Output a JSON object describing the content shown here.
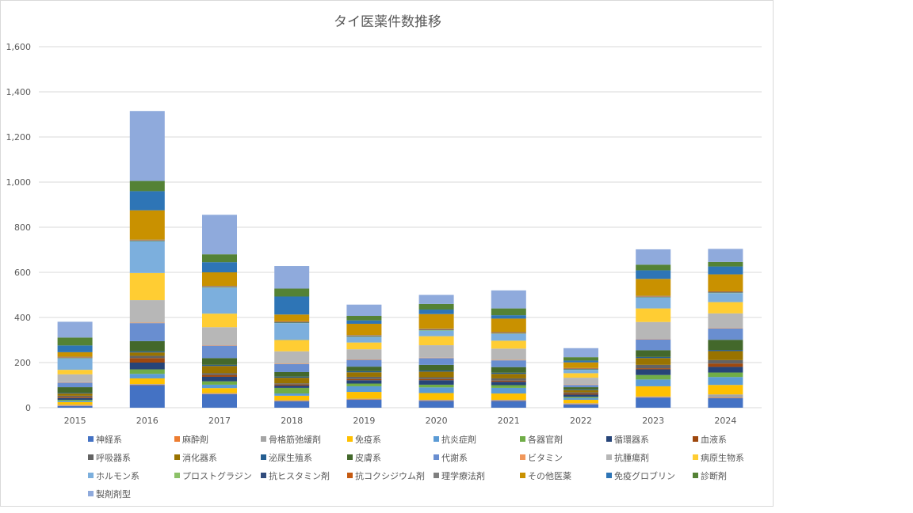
{
  "chart_data": {
    "type": "bar",
    "stacked": true,
    "title": "タイ医薬件数推移",
    "categories": [
      "2015",
      "2016",
      "2017",
      "2018",
      "2019",
      "2020",
      "2021",
      "2022",
      "2023",
      "2024"
    ],
    "ylim": [
      0,
      1600
    ],
    "yticks": [
      "0",
      "200",
      "400",
      "600",
      "800",
      "1,000",
      "1,200",
      "1,400",
      "1,600"
    ],
    "grid": true,
    "legend_position": "bottom",
    "series": [
      {
        "name": "神経系",
        "color": "#4472c4",
        "values": [
          8,
          100,
          60,
          28,
          35,
          30,
          30,
          15,
          45,
          42
        ]
      },
      {
        "name": "麻酔剤",
        "color": "#ed7d31",
        "values": [
          2,
          2,
          2,
          2,
          2,
          2,
          2,
          2,
          2,
          2
        ]
      },
      {
        "name": "骨格筋弛緩剤",
        "color": "#a5a5a5",
        "values": [
          3,
          3,
          3,
          3,
          3,
          3,
          3,
          3,
          3,
          15
        ]
      },
      {
        "name": "免疫系",
        "color": "#ffc000",
        "values": [
          12,
          25,
          22,
          20,
          30,
          30,
          28,
          15,
          45,
          42
        ]
      },
      {
        "name": "抗炎症剤",
        "color": "#5b9bd5",
        "values": [
          5,
          20,
          15,
          10,
          25,
          25,
          25,
          8,
          30,
          35
        ]
      },
      {
        "name": "各器官剤",
        "color": "#70ad47",
        "values": [
          5,
          20,
          15,
          25,
          12,
          12,
          12,
          5,
          20,
          20
        ]
      },
      {
        "name": "循環器系",
        "color": "#264478",
        "values": [
          8,
          30,
          20,
          10,
          15,
          20,
          15,
          10,
          25,
          25
        ]
      },
      {
        "name": "血液系",
        "color": "#9e480e",
        "values": [
          5,
          20,
          8,
          5,
          5,
          5,
          5,
          5,
          5,
          15
        ]
      },
      {
        "name": "呼吸器系",
        "color": "#636363",
        "values": [
          5,
          10,
          8,
          5,
          10,
          8,
          10,
          5,
          15,
          15
        ]
      },
      {
        "name": "消化器系",
        "color": "#997300",
        "values": [
          10,
          15,
          32,
          25,
          20,
          25,
          20,
          10,
          30,
          40
        ]
      },
      {
        "name": "泌尿生殖系",
        "color": "#255e91",
        "values": [
          3,
          5,
          5,
          5,
          5,
          5,
          5,
          3,
          5,
          5
        ]
      },
      {
        "name": "皮膚系",
        "color": "#43682b",
        "values": [
          25,
          45,
          30,
          20,
          20,
          25,
          25,
          10,
          30,
          45
        ]
      },
      {
        "name": "代謝系",
        "color": "#698ed0",
        "values": [
          20,
          80,
          55,
          35,
          30,
          30,
          30,
          10,
          48,
          50
        ]
      },
      {
        "name": "ビタミン",
        "color": "#f1975a",
        "values": [
          2,
          2,
          2,
          2,
          2,
          2,
          2,
          2,
          2,
          2
        ]
      },
      {
        "name": "抗腫瘍剤",
        "color": "#b7b7b7",
        "values": [
          35,
          100,
          80,
          55,
          45,
          55,
          50,
          30,
          75,
          65
        ]
      },
      {
        "name": "病原生物系",
        "color": "#ffcd33",
        "values": [
          20,
          120,
          60,
          50,
          30,
          40,
          35,
          20,
          60,
          50
        ]
      },
      {
        "name": "ホルモン系",
        "color": "#7cafdd",
        "values": [
          50,
          140,
          115,
          75,
          25,
          25,
          30,
          15,
          48,
          40
        ]
      },
      {
        "name": "プロストグラジン",
        "color": "#8cc168",
        "values": [
          2,
          2,
          2,
          2,
          2,
          2,
          2,
          2,
          2,
          2
        ]
      },
      {
        "name": "抗ヒスタミン剤",
        "color": "#314c7c",
        "values": [
          2,
          2,
          2,
          2,
          2,
          2,
          2,
          2,
          2,
          2
        ]
      },
      {
        "name": "抗コクシジウム剤",
        "color": "#c55a11",
        "values": [
          2,
          2,
          2,
          2,
          2,
          2,
          2,
          2,
          2,
          2
        ]
      },
      {
        "name": "理学療法剤",
        "color": "#7f7f7f",
        "values": [
          2,
          2,
          2,
          2,
          2,
          2,
          2,
          2,
          2,
          2
        ]
      },
      {
        "name": "その他医薬",
        "color": "#c99100",
        "values": [
          20,
          130,
          60,
          30,
          50,
          65,
          60,
          25,
          75,
          75
        ]
      },
      {
        "name": "免疫グロブリン",
        "color": "#2e75b6",
        "values": [
          30,
          85,
          45,
          80,
          15,
          20,
          15,
          8,
          38,
          35
        ]
      },
      {
        "name": "診断剤",
        "color": "#548235",
        "values": [
          35,
          45,
          35,
          35,
          20,
          25,
          30,
          15,
          25,
          20
        ]
      },
      {
        "name": "製剤剤型",
        "color": "#8faadc",
        "values": [
          70,
          310,
          175,
          100,
          50,
          40,
          80,
          40,
          68,
          58
        ]
      }
    ]
  }
}
